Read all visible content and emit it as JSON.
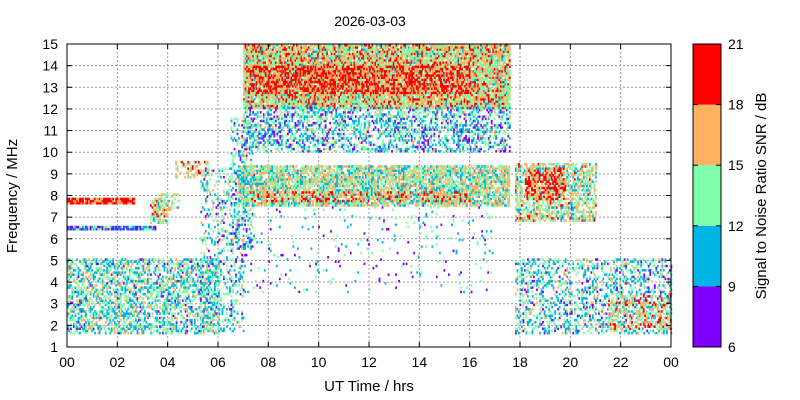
{
  "chart_data": {
    "type": "heatmap",
    "title": "2026-03-03",
    "xlabel": "UT Time / hrs",
    "ylabel": "Frequency / MHz",
    "xlim": [
      0,
      24
    ],
    "ylim": [
      1,
      15
    ],
    "x_ticks": [
      "00",
      "02",
      "04",
      "06",
      "08",
      "10",
      "12",
      "14",
      "16",
      "18",
      "20",
      "22",
      "00"
    ],
    "y_ticks": [
      "1",
      "2",
      "3",
      "4",
      "5",
      "6",
      "7",
      "8",
      "9",
      "10",
      "11",
      "12",
      "13",
      "14",
      "15"
    ],
    "grid": true,
    "colorbar": {
      "label": "Signal to Noise Ratio SNR / dB",
      "ticks": [
        "6",
        "9",
        "12",
        "15",
        "18",
        "21"
      ],
      "range": [
        6,
        21
      ],
      "bands": [
        {
          "from": 6,
          "to": 9,
          "color": "#7f00ff"
        },
        {
          "from": 9,
          "to": 12,
          "color": "#00b4e6"
        },
        {
          "from": 12,
          "to": 15,
          "color": "#80ffaa"
        },
        {
          "from": 15,
          "to": 18,
          "color": "#ffb060"
        },
        {
          "from": 18,
          "to": 21,
          "color": "#ff0000"
        }
      ]
    },
    "regions": [
      {
        "t": [
          0.0,
          2.7
        ],
        "f": [
          7.6,
          7.8
        ],
        "snr": 19.5,
        "density": 0.95
      },
      {
        "t": [
          0.0,
          3.5
        ],
        "f": [
          6.4,
          6.6
        ],
        "snr": 10.0,
        "density": 0.9
      },
      {
        "t": [
          3.3,
          4.0
        ],
        "f": [
          6.7,
          7.8
        ],
        "snr": 15.0,
        "density": 0.6
      },
      {
        "t": [
          3.6,
          4.4
        ],
        "f": [
          7.3,
          8.0
        ],
        "snr": 14.0,
        "density": 0.45
      },
      {
        "t": [
          4.3,
          5.6
        ],
        "f": [
          8.8,
          9.5
        ],
        "snr": 16.0,
        "density": 0.35
      },
      {
        "t": [
          0.0,
          6.0
        ],
        "f": [
          1.6,
          5.0
        ],
        "snr": 12.5,
        "density": 0.5
      },
      {
        "t": [
          5.3,
          7.0
        ],
        "f": [
          1.7,
          9.2
        ],
        "snr": 12.0,
        "density": 0.22
      },
      {
        "t": [
          6.5,
          7.4
        ],
        "f": [
          5.5,
          11.5
        ],
        "snr": 11.5,
        "density": 0.3
      },
      {
        "t": [
          7.0,
          17.6
        ],
        "f": [
          12.0,
          14.9
        ],
        "snr": 15.5,
        "density": 0.9
      },
      {
        "t": [
          7.2,
          16.0
        ],
        "f": [
          12.7,
          13.9
        ],
        "snr": 19.5,
        "density": 0.55
      },
      {
        "t": [
          7.0,
          17.6
        ],
        "f": [
          10.0,
          12.0
        ],
        "snr": 11.5,
        "density": 0.45
      },
      {
        "t": [
          6.8,
          17.6
        ],
        "f": [
          7.5,
          9.3
        ],
        "snr": 14.0,
        "density": 0.75
      },
      {
        "t": [
          7.2,
          16.0
        ],
        "f": [
          7.7,
          8.2
        ],
        "snr": 18.5,
        "density": 0.35
      },
      {
        "t": [
          6.5,
          17.0
        ],
        "f": [
          3.5,
          7.5
        ],
        "snr": 10.5,
        "density": 0.04
      },
      {
        "t": [
          17.8,
          21.0
        ],
        "f": [
          6.8,
          9.4
        ],
        "snr": 14.5,
        "density": 0.6
      },
      {
        "t": [
          18.2,
          19.8
        ],
        "f": [
          7.8,
          9.2
        ],
        "snr": 19.0,
        "density": 0.5
      },
      {
        "t": [
          17.8,
          24.0
        ],
        "f": [
          1.6,
          5.0
        ],
        "snr": 12.0,
        "density": 0.35
      },
      {
        "t": [
          21.5,
          24.0
        ],
        "f": [
          1.8,
          3.4
        ],
        "snr": 16.0,
        "density": 0.35
      }
    ]
  }
}
